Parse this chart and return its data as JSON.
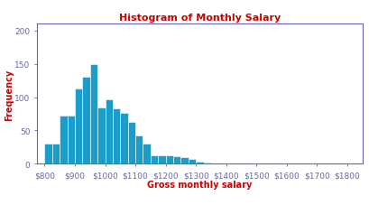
{
  "title": "Histogram of Monthly Salary",
  "xlabel": "Gross monthly salary",
  "ylabel": "Frequency",
  "title_color": "#cc0000",
  "xlabel_color": "#cc0000",
  "ylabel_color": "#cc0000",
  "bar_color": "#1a9ec9",
  "bar_edge_color": "#ffffff",
  "axis_border_color": "#6666aa",
  "tick_color": "#6666aa",
  "bin_left_edges": [
    800,
    825,
    850,
    875,
    900,
    925,
    950,
    975,
    1000,
    1025,
    1050,
    1075,
    1100,
    1125,
    1150,
    1175,
    1200,
    1225,
    1250,
    1275,
    1300,
    1325,
    1350,
    1375,
    1400,
    1425
  ],
  "frequencies": [
    30,
    30,
    73,
    73,
    113,
    130,
    150,
    85,
    97,
    83,
    77,
    63,
    42,
    30,
    13,
    13,
    13,
    12,
    10,
    7,
    3,
    2,
    1,
    0,
    1,
    1
  ],
  "xlim": [
    775,
    1850
  ],
  "ylim": [
    0,
    210
  ],
  "xticks": [
    800,
    900,
    1000,
    1100,
    1200,
    1300,
    1400,
    1500,
    1600,
    1700,
    1800
  ],
  "yticks": [
    0,
    50,
    100,
    150,
    200
  ],
  "bin_width": 25,
  "background_color": "#ffffff",
  "title_fontsize": 8,
  "label_fontsize": 7,
  "tick_fontsize": 6.5
}
